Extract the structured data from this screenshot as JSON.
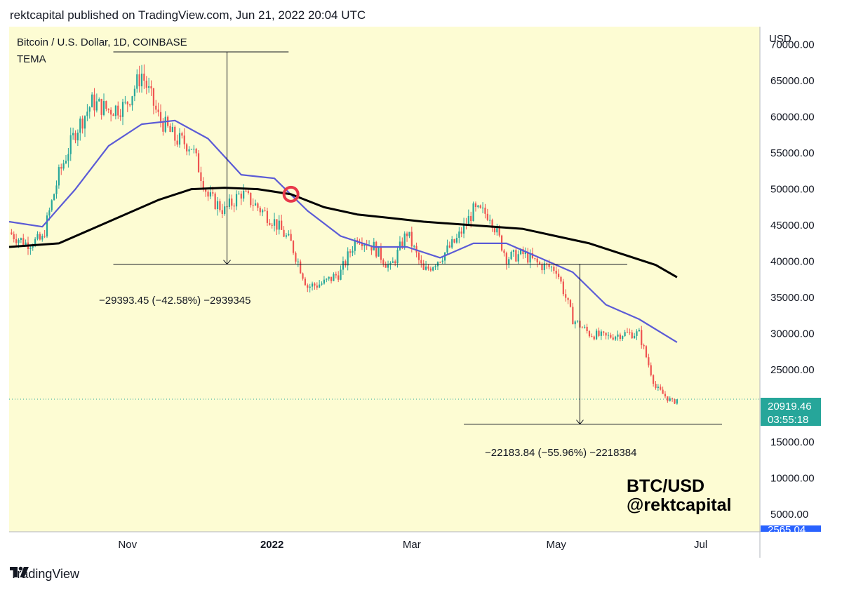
{
  "header": {
    "text": "rektcapital published on TradingView.com, Jun 21, 2022 20:04 UTC"
  },
  "chart": {
    "symbol": "Bitcoin / U.S. Dollar, 1D, COINBASE",
    "indicator": "TEMA",
    "currency": "USD",
    "watermark_line1": "BTC/USD",
    "watermark_line2": "@rektcapital",
    "price_badge": {
      "price": "20919.46",
      "countdown": "03:55:18",
      "color": "#26a69a"
    },
    "bottom_badge": "2565.04",
    "colors": {
      "background": "#fdfcd3",
      "up": "#26a69a",
      "down": "#ef5350",
      "tema_fast": "#5b5bd6",
      "tema_slow": "#000000",
      "marker": "#e8394a"
    }
  },
  "measure_1": {
    "label": "−29393.45 (−42.58%) −2939345",
    "from": 69000,
    "to": 39607
  },
  "measure_2": {
    "label": "−22183.84 (−55.96%) −2218384",
    "from": 39650,
    "to": 17466
  },
  "crossover_marker": {
    "date": "2022-01-09",
    "price": 49300,
    "icon": "circle-marker-icon"
  },
  "footer": {
    "brand": "TradingView",
    "icon": "tradingview-logo-icon"
  },
  "chart_data": {
    "type": "candlestick",
    "title": "Bitcoin / U.S. Dollar, 1D, COINBASE",
    "ylabel": "USD",
    "ylim": [
      2565.04,
      72500
    ],
    "xlim": [
      "2021-09-12",
      "2022-07-26"
    ],
    "y_ticks": [
      5000,
      10000,
      15000,
      20000,
      25000,
      30000,
      35000,
      40000,
      45000,
      50000,
      55000,
      60000,
      65000,
      70000
    ],
    "y_tick_labels": [
      "5000.00",
      "10000.00",
      "15000.00",
      "20000.00",
      "25000.00",
      "30000.00",
      "35000.00",
      "40000.00",
      "45000.00",
      "50000.00",
      "55000.00",
      "60000.00",
      "65000.00",
      "70000.00"
    ],
    "x_ticks": [
      {
        "label": "Nov",
        "date": "2021-11-01"
      },
      {
        "label": "2022",
        "date": "2022-01-01"
      },
      {
        "label": "Mar",
        "date": "2022-03-01"
      },
      {
        "label": "May",
        "date": "2022-05-01"
      },
      {
        "label": "Jul",
        "date": "2022-07-01"
      }
    ],
    "last_price": 20919.46,
    "closes": {
      "dates": [
        "2021-09-12",
        "2021-09-19",
        "2021-09-26",
        "2021-10-03",
        "2021-10-10",
        "2021-10-17",
        "2021-10-24",
        "2021-10-31",
        "2021-11-07",
        "2021-11-14",
        "2021-11-21",
        "2021-11-28",
        "2021-12-05",
        "2021-12-12",
        "2021-12-19",
        "2021-12-26",
        "2022-01-02",
        "2022-01-09",
        "2022-01-16",
        "2022-01-23",
        "2022-01-30",
        "2022-02-06",
        "2022-02-13",
        "2022-02-20",
        "2022-02-27",
        "2022-03-06",
        "2022-03-13",
        "2022-03-20",
        "2022-03-27",
        "2022-04-03",
        "2022-04-10",
        "2022-04-17",
        "2022-04-24",
        "2022-05-01",
        "2022-05-08",
        "2022-05-15",
        "2022-05-22",
        "2022-05-29",
        "2022-06-05",
        "2022-06-12",
        "2022-06-19",
        "2022-06-21"
      ],
      "values": [
        44000,
        42500,
        43000,
        52000,
        58000,
        62000,
        61000,
        61500,
        66000,
        60000,
        57000,
        56000,
        49000,
        47000,
        49500,
        47500,
        45500,
        42500,
        36500,
        37000,
        38500,
        43500,
        42000,
        39000,
        44000,
        38500,
        40500,
        43000,
        47000,
        46500,
        40500,
        41000,
        39500,
        39000,
        32000,
        30000,
        29500,
        30000,
        30000,
        22500,
        20500,
        20900
      ]
    },
    "series": [
      {
        "name": "",
        "color": "#5b5bd6",
        "dates": [
          "2021-09-12",
          "2021-09-26",
          "2021-10-10",
          "2021-10-24",
          "2021-11-07",
          "2021-11-21",
          "2021-12-05",
          "2021-12-19",
          "2022-01-02",
          "2022-01-16",
          "2022-01-30",
          "2022-02-13",
          "2022-02-27",
          "2022-03-13",
          "2022-03-27",
          "2022-04-10",
          "2022-04-24",
          "2022-05-08",
          "2022-05-22",
          "2022-06-05",
          "2022-06-21"
        ],
        "values": [
          45500,
          44800,
          50000,
          56000,
          59000,
          59500,
          57000,
          52000,
          51500,
          47000,
          43500,
          42000,
          42000,
          40500,
          42500,
          42500,
          40500,
          38500,
          34000,
          32000,
          28800
        ]
      },
      {
        "name": "",
        "color": "#000000",
        "dates": [
          "2021-09-12",
          "2021-10-03",
          "2021-10-24",
          "2021-11-14",
          "2021-11-28",
          "2021-12-12",
          "2021-12-26",
          "2022-01-09",
          "2022-01-23",
          "2022-02-06",
          "2022-02-20",
          "2022-03-06",
          "2022-03-27",
          "2022-04-17",
          "2022-05-01",
          "2022-05-15",
          "2022-05-29",
          "2022-06-12",
          "2022-06-21"
        ],
        "values": [
          42000,
          42500,
          45500,
          48500,
          50000,
          50200,
          50000,
          49300,
          47500,
          46500,
          46000,
          45500,
          45000,
          44500,
          43500,
          42500,
          41000,
          39500,
          37800
        ]
      }
    ]
  }
}
